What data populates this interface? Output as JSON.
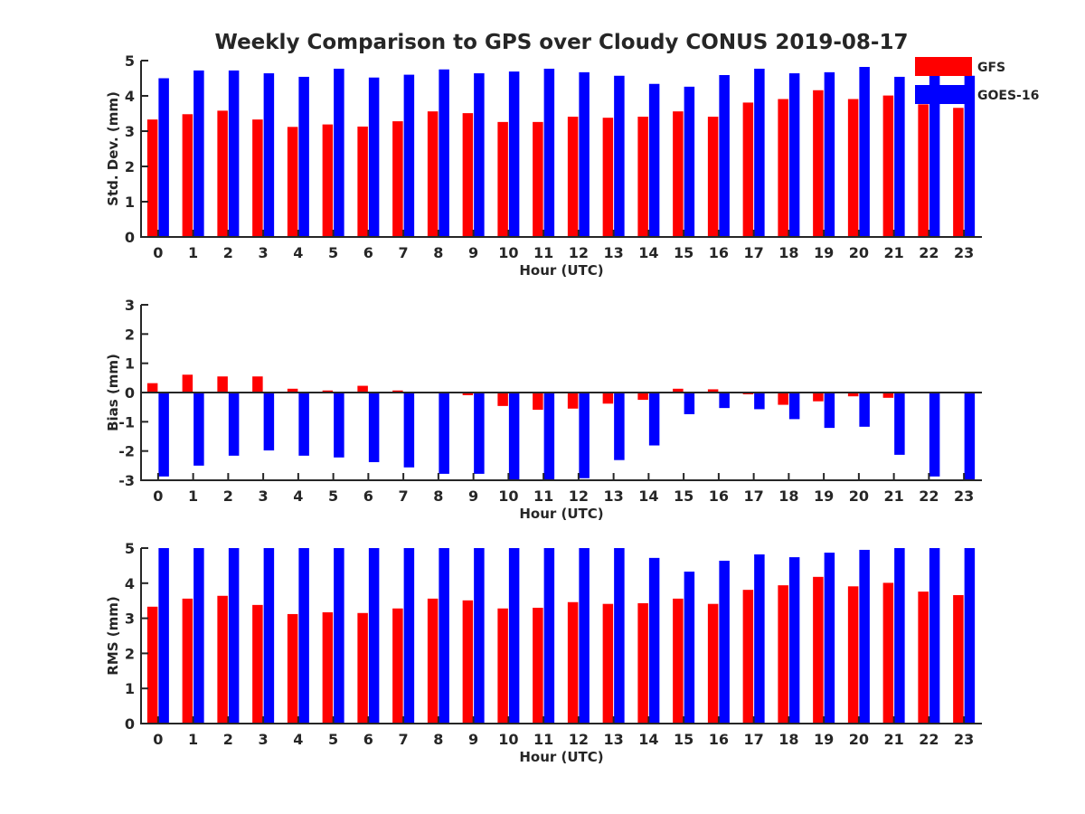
{
  "chart_data": {
    "type": "bar",
    "title": "Weekly Comparison to GPS over Cloudy CONUS 2019-08-17",
    "legend": {
      "placement": "top-right",
      "entries": [
        {
          "name": "GFS",
          "color": "#ff0000"
        },
        {
          "name": "GOES-16",
          "color": "#0000ff"
        }
      ]
    },
    "panels": [
      {
        "ylabel": "Std. Dev. (mm)",
        "xlabel": "Hour (UTC)",
        "ylim": [
          0,
          5
        ],
        "yticks": [
          0,
          1,
          2,
          3,
          4,
          5
        ],
        "categories": [
          "0",
          "1",
          "2",
          "3",
          "4",
          "5",
          "6",
          "7",
          "8",
          "9",
          "10",
          "11",
          "12",
          "13",
          "14",
          "15",
          "16",
          "17",
          "18",
          "19",
          "20",
          "21",
          "22",
          "23"
        ],
        "series": [
          {
            "name": "GFS",
            "color": "#ff0000",
            "values": [
              3.33,
              3.48,
              3.58,
              3.33,
              3.12,
              3.19,
              3.13,
              3.28,
              3.56,
              3.51,
              3.26,
              3.26,
              3.41,
              3.38,
              3.41,
              3.56,
              3.41,
              3.81,
              3.91,
              4.16,
              3.91,
              4.01,
              3.76,
              3.66
            ]
          },
          {
            "name": "GOES-16",
            "color": "#0000ff",
            "values": [
              4.5,
              4.72,
              4.72,
              4.64,
              4.54,
              4.77,
              4.52,
              4.6,
              4.75,
              4.64,
              4.69,
              4.77,
              4.67,
              4.57,
              4.34,
              4.26,
              4.59,
              4.77,
              4.64,
              4.67,
              4.82,
              4.54,
              4.62,
              4.57
            ]
          }
        ]
      },
      {
        "ylabel": "Bias (mm)",
        "xlabel": "Hour (UTC)",
        "ylim": [
          -3,
          3
        ],
        "yticks": [
          -3,
          -2,
          -1,
          0,
          1,
          2,
          3
        ],
        "categories": [
          "0",
          "1",
          "2",
          "3",
          "4",
          "5",
          "6",
          "7",
          "8",
          "9",
          "10",
          "11",
          "12",
          "13",
          "14",
          "15",
          "16",
          "17",
          "18",
          "19",
          "20",
          "21",
          "22",
          "23"
        ],
        "series": [
          {
            "name": "GFS",
            "color": "#ff0000",
            "values": [
              0.32,
              0.61,
              0.55,
              0.55,
              0.13,
              0.07,
              0.23,
              0.07,
              -0.03,
              -0.09,
              -0.46,
              -0.59,
              -0.55,
              -0.38,
              -0.25,
              0.13,
              0.11,
              -0.06,
              -0.42,
              -0.3,
              -0.13,
              -0.18,
              0.0,
              0.0
            ]
          },
          {
            "name": "GOES-16",
            "color": "#0000ff",
            "values": [
              -2.87,
              -2.5,
              -2.16,
              -1.98,
              -2.16,
              -2.22,
              -2.38,
              -2.56,
              -2.78,
              -2.78,
              -3.0,
              -3.0,
              -2.93,
              -2.31,
              -1.81,
              -0.74,
              -0.53,
              -0.57,
              -0.91,
              -1.21,
              -1.17,
              -2.13,
              -2.87,
              -3.0
            ]
          }
        ]
      },
      {
        "ylabel": "RMS (mm)",
        "xlabel": "Hour (UTC)",
        "ylim": [
          0,
          5
        ],
        "yticks": [
          0,
          1,
          2,
          3,
          4,
          5
        ],
        "categories": [
          "0",
          "1",
          "2",
          "3",
          "4",
          "5",
          "6",
          "7",
          "8",
          "9",
          "10",
          "11",
          "12",
          "13",
          "14",
          "15",
          "16",
          "17",
          "18",
          "19",
          "20",
          "21",
          "22",
          "23"
        ],
        "series": [
          {
            "name": "GFS",
            "color": "#ff0000",
            "values": [
              3.33,
              3.56,
              3.64,
              3.38,
              3.12,
              3.17,
              3.15,
              3.28,
              3.56,
              3.51,
              3.28,
              3.3,
              3.46,
              3.41,
              3.43,
              3.56,
              3.41,
              3.81,
              3.94,
              4.18,
              3.91,
              4.01,
              3.76,
              3.66
            ]
          },
          {
            "name": "GOES-16",
            "color": "#0000ff",
            "values": [
              5.0,
              5.0,
              5.0,
              5.0,
              5.0,
              5.0,
              5.0,
              5.0,
              5.0,
              5.0,
              5.0,
              5.0,
              5.0,
              5.0,
              4.72,
              4.33,
              4.64,
              4.82,
              4.74,
              4.87,
              4.95,
              5.0,
              5.0,
              5.0
            ]
          }
        ]
      }
    ]
  }
}
